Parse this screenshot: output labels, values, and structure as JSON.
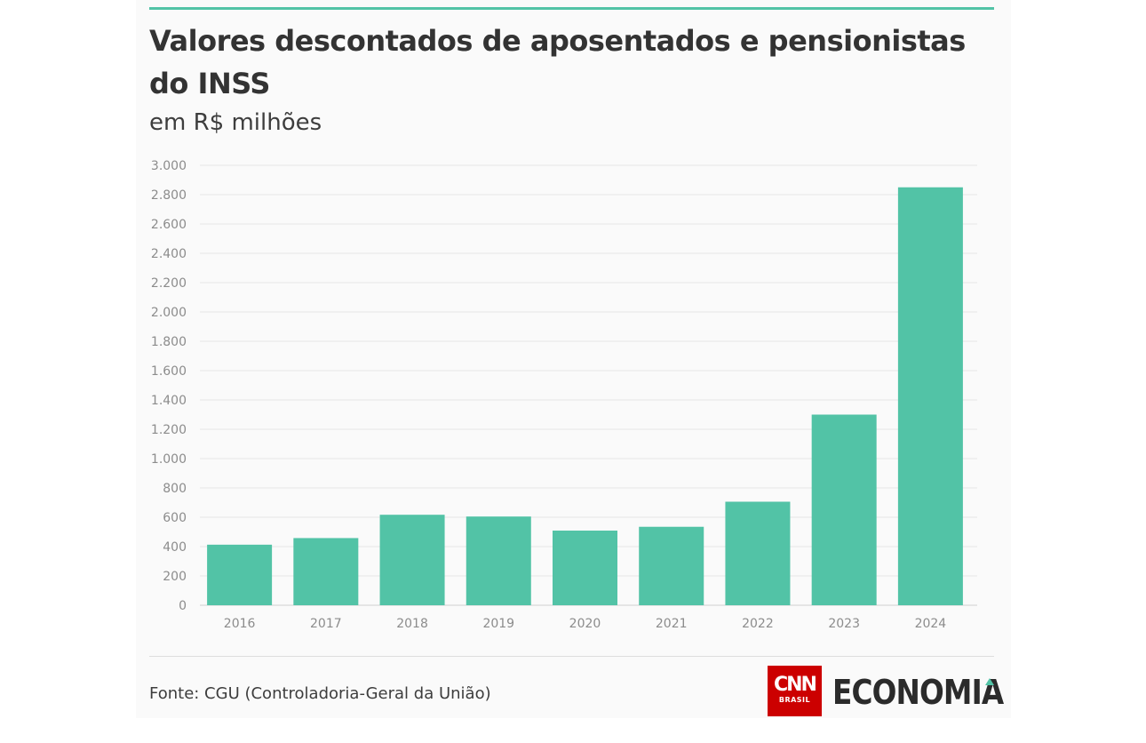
{
  "title": "Valores descontados de aposentados e pensionistas do INSS",
  "subtitle": "em R$ milhões",
  "source": "Fonte: CGU (Controladoria-Geral da União)",
  "brand": {
    "cnn": "CNN",
    "cnn_sub": "BRASIL",
    "section": "ECONOMIA"
  },
  "colors": {
    "bar": "#52c3a6",
    "accent": "#52c3a6",
    "grid": "#e6e6e6",
    "axis_text": "#8c8c8c"
  },
  "chart_data": {
    "type": "bar",
    "title": "Valores descontados de aposentados e pensionistas do INSS",
    "subtitle": "em R$ milhões",
    "xlabel": "",
    "ylabel": "",
    "categories": [
      "2016",
      "2017",
      "2018",
      "2019",
      "2020",
      "2021",
      "2022",
      "2023",
      "2024"
    ],
    "values": [
      413,
      458,
      617,
      605,
      509,
      535,
      706,
      1300,
      2850
    ],
    "ylim": [
      0,
      3000
    ],
    "yticks": [
      0,
      200,
      400,
      600,
      800,
      1000,
      1200,
      1400,
      1600,
      1800,
      2000,
      2200,
      2400,
      2600,
      2800,
      3000
    ],
    "ytick_labels": [
      "0",
      "200",
      "400",
      "600",
      "800",
      "1.000",
      "1.200",
      "1.400",
      "1.600",
      "1.800",
      "2.000",
      "2.200",
      "2.400",
      "2.600",
      "2.800",
      "3.000"
    ],
    "grid": true,
    "legend": "none"
  }
}
